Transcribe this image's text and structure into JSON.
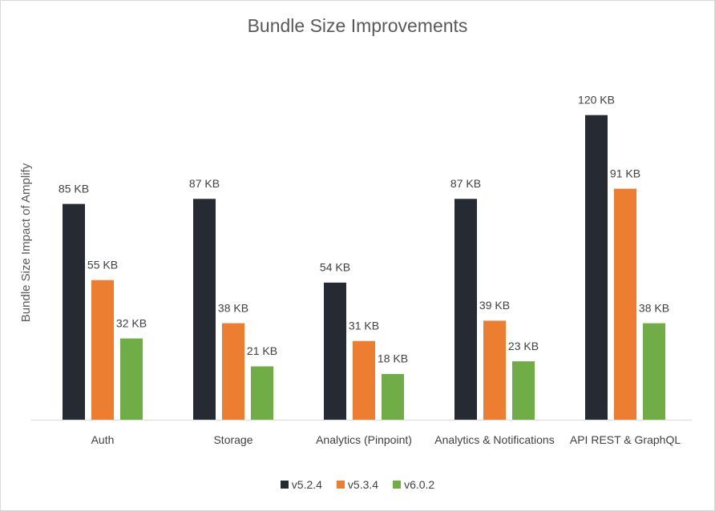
{
  "chart_data": {
    "type": "bar",
    "title": "Bundle Size Improvements",
    "y_label": "Bundle Size Impact of Amplify",
    "categories": [
      "Auth",
      "Storage",
      "Analytics (Pinpoint)",
      "Analytics & Notifications",
      "API REST & GraphQL"
    ],
    "series": [
      {
        "name": "v5.2.4",
        "color": "#262a33",
        "values": [
          85,
          87,
          54,
          87,
          120
        ],
        "value_labels": [
          "85 KB",
          "87 KB",
          "54 KB",
          "87 KB",
          "120 KB"
        ]
      },
      {
        "name": "v5.3.4",
        "color": "#ed7d31",
        "values": [
          55,
          38,
          31,
          39,
          91
        ],
        "value_labels": [
          "55 KB",
          "38 KB",
          "31 KB",
          "39 KB",
          "91 KB"
        ]
      },
      {
        "name": "v6.0.2",
        "color": "#70ad47",
        "values": [
          32,
          21,
          18,
          23,
          38
        ],
        "value_labels": [
          "32 KB",
          "21 KB",
          "18 KB",
          "23 KB",
          "38 KB"
        ]
      }
    ],
    "ylim": [
      0,
      130
    ],
    "legend": "bottom"
  }
}
